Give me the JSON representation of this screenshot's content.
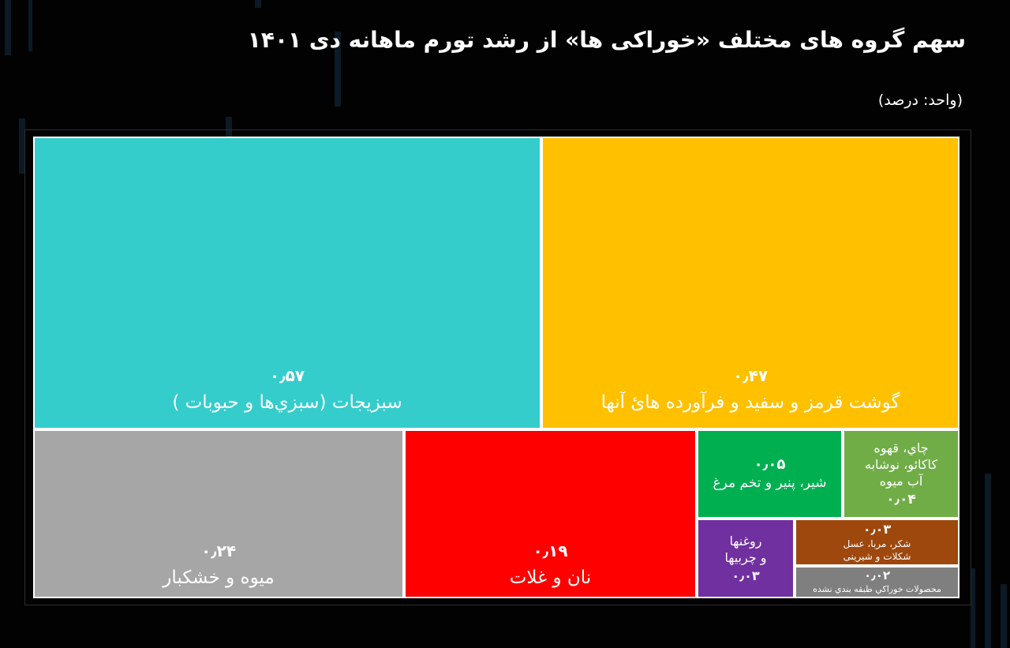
{
  "title": "سهم گروه های مختلف «خوراکی ها» از رشد تورم ماهانه دی ۱۴۰۱",
  "unit": "(واحد: درصد)",
  "chart_data": {
    "type": "treemap",
    "title": "سهم گروه های مختلف «خوراکی ها» از رشد تورم ماهانه دی ۱۴۰۱",
    "unit": "(واحد: درصد)",
    "items": [
      {
        "label": "سبزیجات (سبزي‌ها و حبوبات )",
        "value": 0.57,
        "value_label": "۰٫۵۷",
        "color": "#35cccc"
      },
      {
        "label": "گوشت قرمز و سفید و فرآورده هائ آنها",
        "value": 0.47,
        "value_label": "۰٫۴۷",
        "color": "#ffc000"
      },
      {
        "label": "میوه و خشکبار",
        "value": 0.24,
        "value_label": "۰٫۲۴",
        "color": "#a6a6a6"
      },
      {
        "label": "نان و غلات",
        "value": 0.19,
        "value_label": "۰٫۱۹",
        "color": "#ff0000"
      },
      {
        "label": "شیر، پنیر و تخم مرغ",
        "value": 0.05,
        "value_label": "۰٫۰۵",
        "color": "#00b050"
      },
      {
        "label": "چاي، قهوه\nکاکائو، نوشابه\nآب میوه",
        "value": 0.04,
        "value_label": "۰٫۰۴",
        "color": "#70ad47"
      },
      {
        "label": "روغنها\nو چربیها",
        "value": 0.03,
        "value_label": "۰٫۰۳",
        "color": "#7030a0"
      },
      {
        "label": "شکر، مربا، عسل\nشکلات و شیرینی",
        "value": 0.03,
        "value_label": "۰٫۰۳",
        "color": "#9e480e"
      },
      {
        "label": "محصولات خوراکي طبقه بندي نشده",
        "value": 0.02,
        "value_label": "۰٫۰۲",
        "color": "#7f7f7f"
      }
    ]
  }
}
